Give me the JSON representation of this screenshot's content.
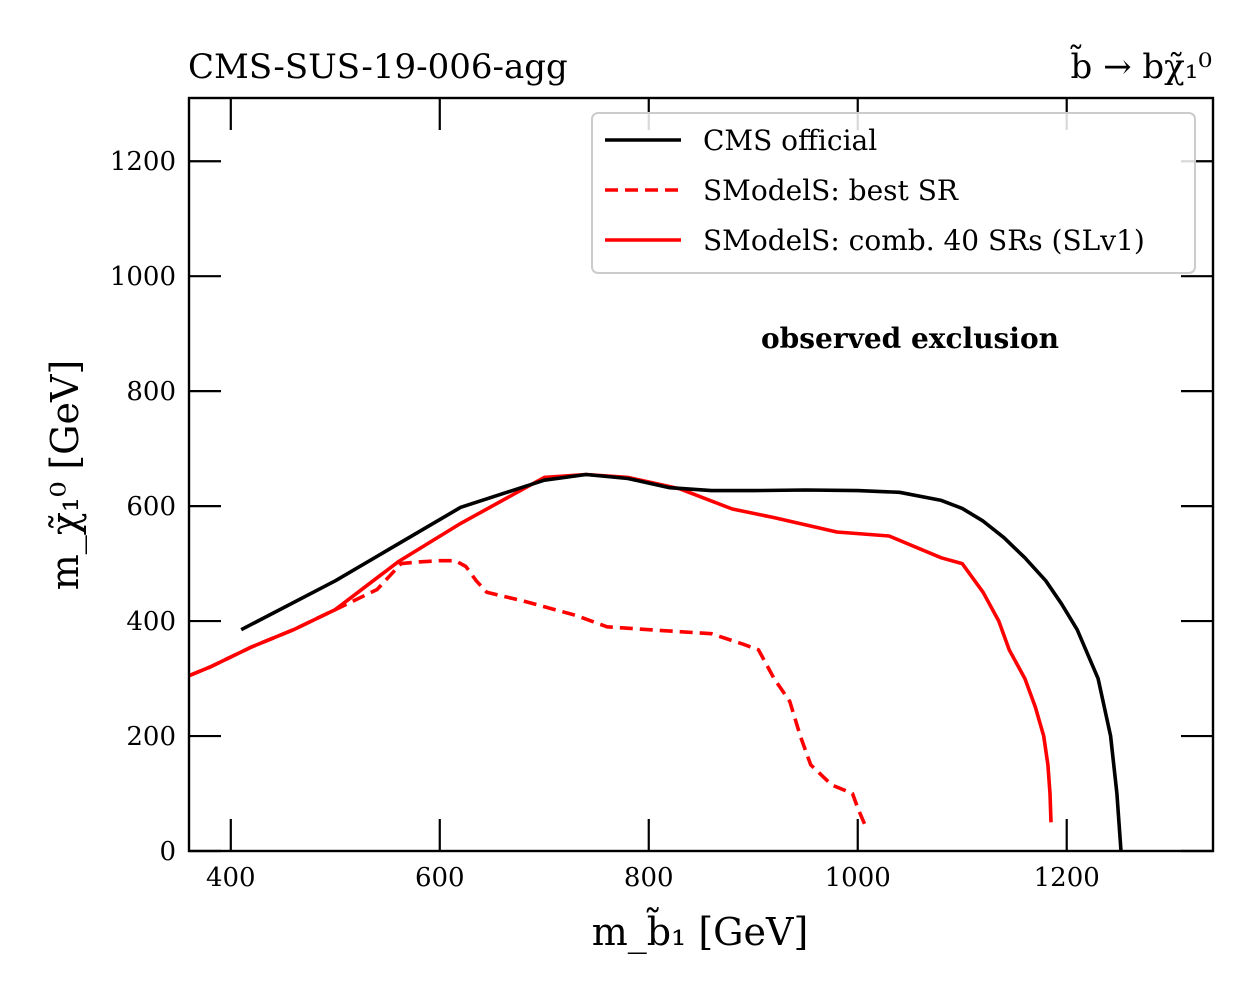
{
  "chart_data": {
    "type": "line",
    "title": "CMS-SUS-19-006-agg",
    "title_right": "b̃ → bχ̃₁⁰",
    "xlabel": "m_b̃₁ [GeV]",
    "ylabel": "m_χ̃₁⁰ [GeV]",
    "xlim": [
      360,
      1340
    ],
    "ylim": [
      0,
      1310
    ],
    "xticks": [
      400,
      600,
      800,
      1000,
      1200
    ],
    "yticks": [
      0,
      200,
      400,
      600,
      800,
      1000,
      1200
    ],
    "grid": false,
    "legend_position": "top-right",
    "annotation": "observed exclusion",
    "series": [
      {
        "name": "CMS official",
        "color": "#000000",
        "dash": "solid",
        "points": [
          [
            410,
            385
          ],
          [
            500,
            470
          ],
          [
            620,
            598
          ],
          [
            700,
            645
          ],
          [
            740,
            655
          ],
          [
            780,
            648
          ],
          [
            820,
            632
          ],
          [
            860,
            627
          ],
          [
            900,
            627
          ],
          [
            950,
            628
          ],
          [
            1000,
            627
          ],
          [
            1040,
            624
          ],
          [
            1080,
            610
          ],
          [
            1100,
            596
          ],
          [
            1120,
            574
          ],
          [
            1140,
            545
          ],
          [
            1160,
            510
          ],
          [
            1180,
            470
          ],
          [
            1195,
            430
          ],
          [
            1210,
            385
          ],
          [
            1230,
            300
          ],
          [
            1242,
            200
          ],
          [
            1248,
            100
          ],
          [
            1252,
            0
          ]
        ]
      },
      {
        "name": "SModelS: best SR",
        "color": "#ff0000",
        "dash": "dashed",
        "points": [
          [
            360,
            305
          ],
          [
            380,
            320
          ],
          [
            420,
            355
          ],
          [
            460,
            385
          ],
          [
            500,
            420
          ],
          [
            540,
            455
          ],
          [
            563,
            500
          ],
          [
            580,
            503
          ],
          [
            600,
            505
          ],
          [
            615,
            505
          ],
          [
            625,
            495
          ],
          [
            635,
            470
          ],
          [
            645,
            450
          ],
          [
            680,
            435
          ],
          [
            730,
            410
          ],
          [
            760,
            390
          ],
          [
            800,
            385
          ],
          [
            860,
            378
          ],
          [
            890,
            360
          ],
          [
            905,
            350
          ],
          [
            920,
            300
          ],
          [
            935,
            260
          ],
          [
            945,
            200
          ],
          [
            955,
            150
          ],
          [
            975,
            115
          ],
          [
            995,
            100
          ],
          [
            1000,
            75
          ],
          [
            1007,
            45
          ]
        ]
      },
      {
        "name": "SModelS: comb. 40 SRs (SLv1)",
        "color": "#ff0000",
        "dash": "solid",
        "points": [
          [
            360,
            305
          ],
          [
            380,
            320
          ],
          [
            420,
            355
          ],
          [
            460,
            385
          ],
          [
            500,
            420
          ],
          [
            560,
            503
          ],
          [
            620,
            570
          ],
          [
            700,
            650
          ],
          [
            740,
            655
          ],
          [
            780,
            650
          ],
          [
            830,
            630
          ],
          [
            880,
            595
          ],
          [
            920,
            580
          ],
          [
            980,
            555
          ],
          [
            1030,
            548
          ],
          [
            1080,
            510
          ],
          [
            1100,
            500
          ],
          [
            1120,
            450
          ],
          [
            1135,
            400
          ],
          [
            1145,
            350
          ],
          [
            1160,
            300
          ],
          [
            1170,
            250
          ],
          [
            1178,
            200
          ],
          [
            1182,
            150
          ],
          [
            1184,
            100
          ],
          [
            1185,
            50
          ]
        ]
      }
    ]
  }
}
